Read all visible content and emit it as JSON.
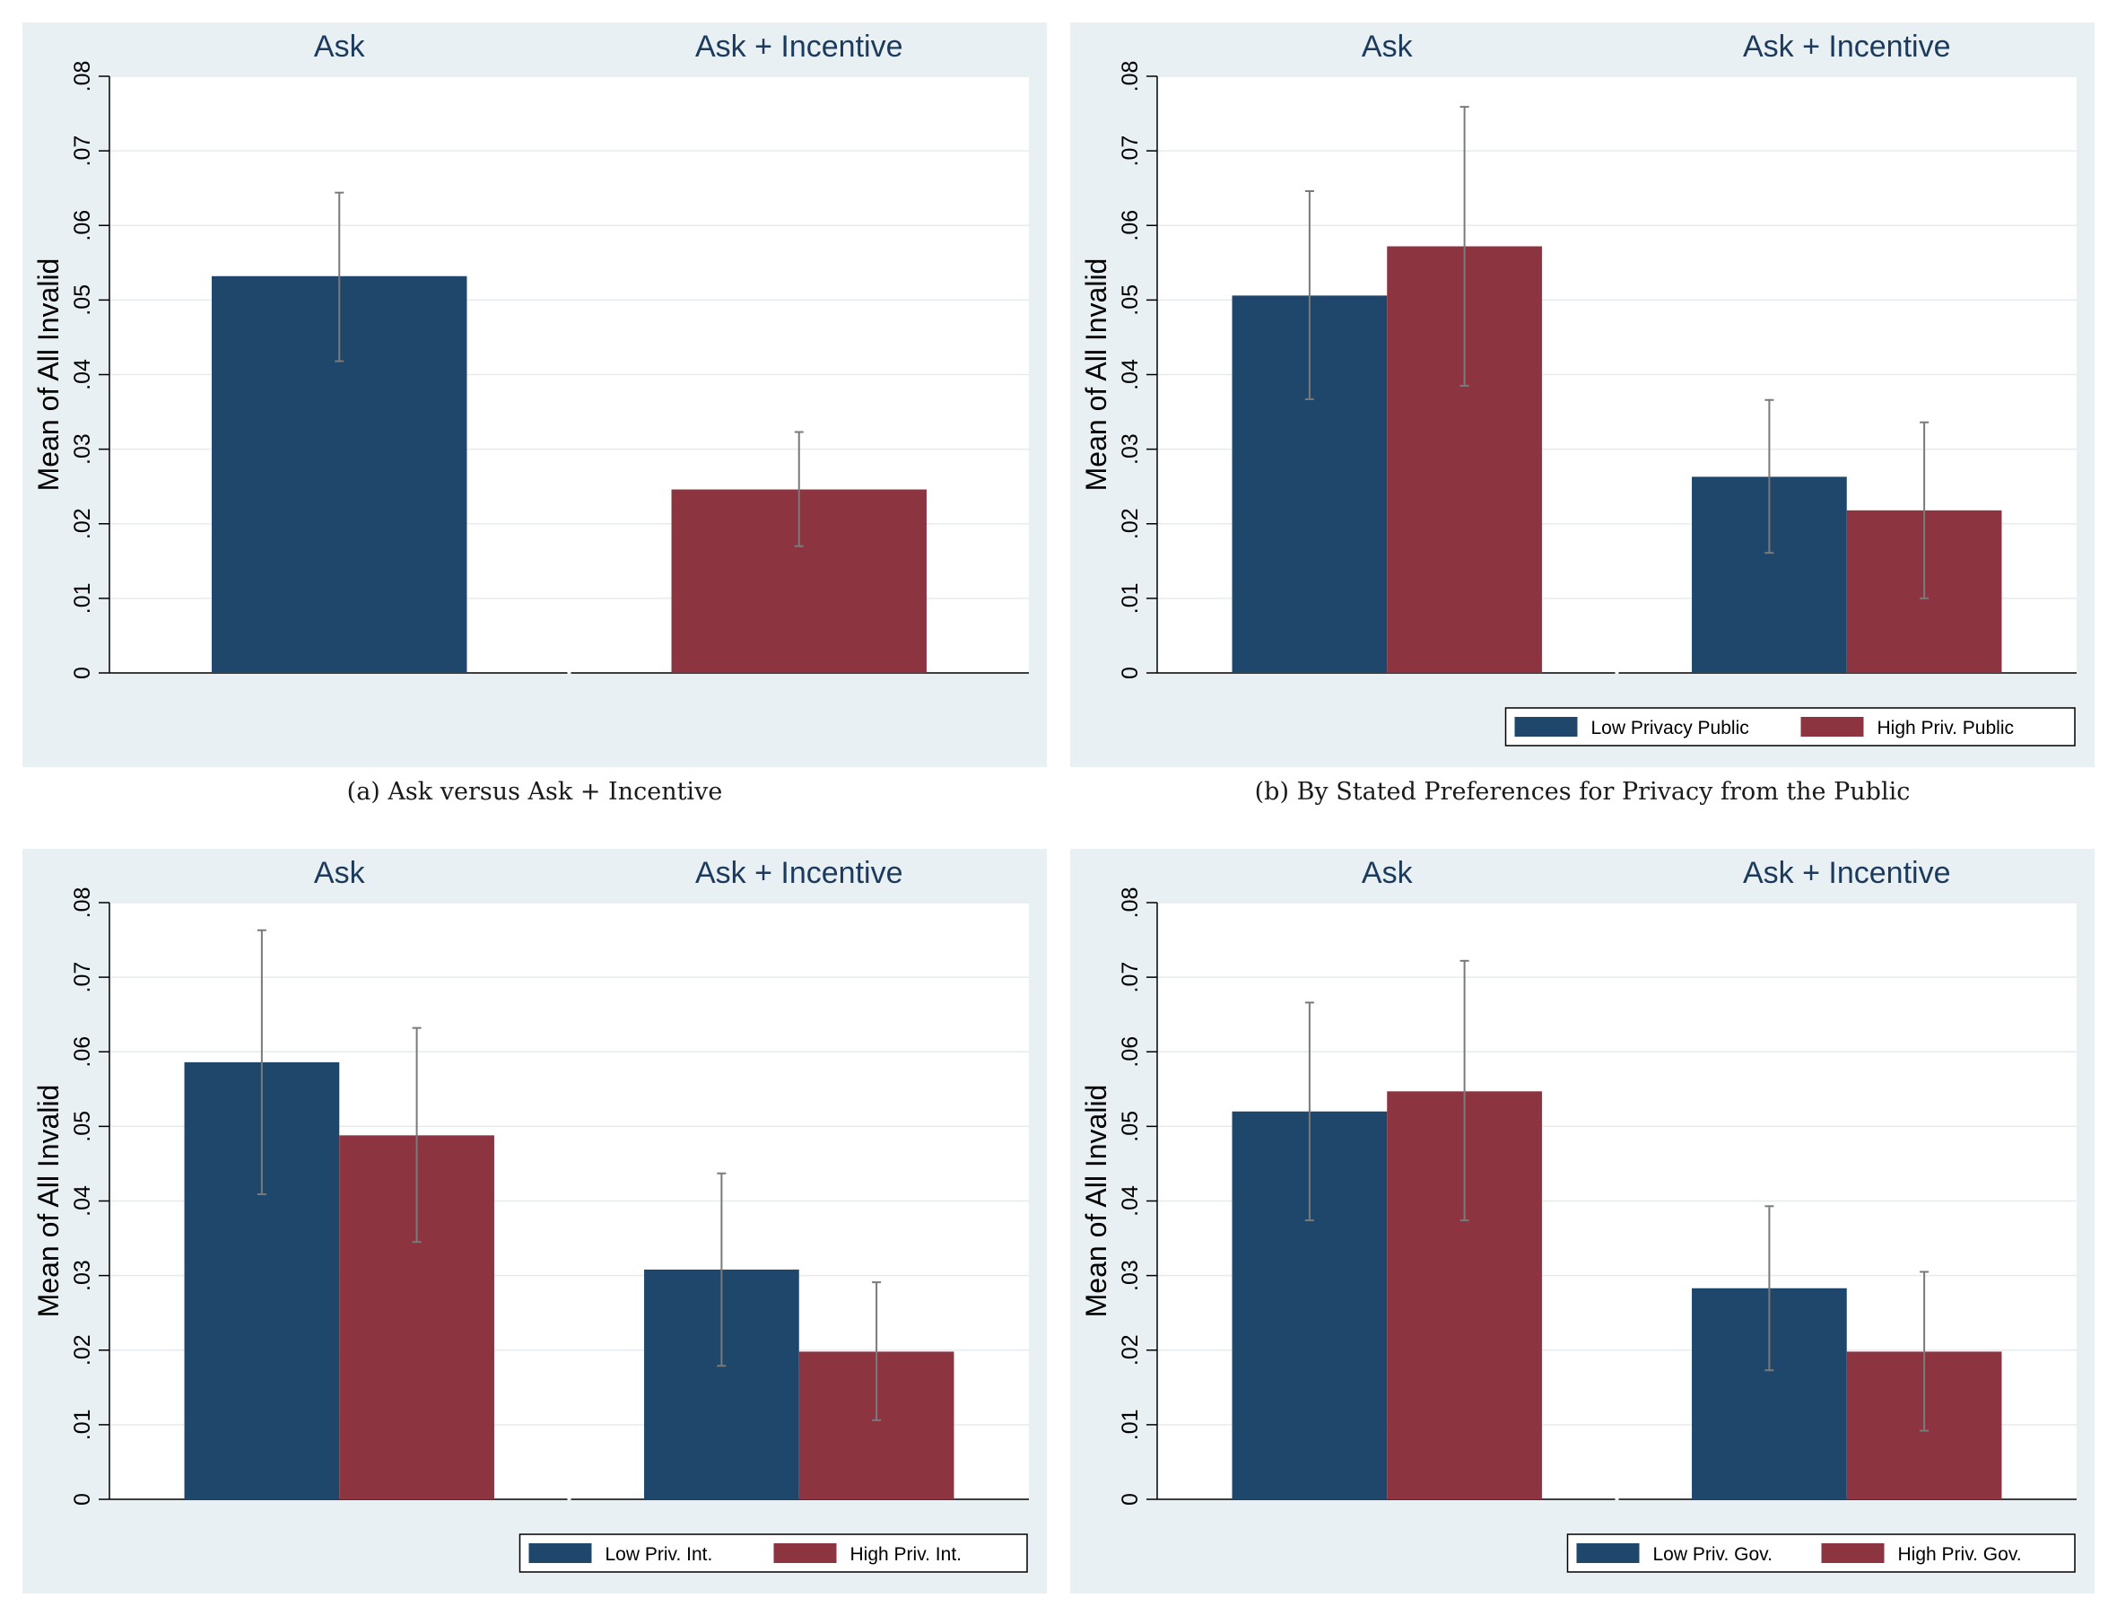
{
  "chart_data": [
    {
      "id": "a",
      "type": "bar",
      "facets": [
        "Ask",
        "Ask + Incentive"
      ],
      "ylabel": "Mean of All Invalid",
      "ylim": [
        0,
        0.08
      ],
      "yticks": [
        {
          "value": 0,
          "label": "0"
        },
        {
          "value": 0.01,
          "label": ".01"
        },
        {
          "value": 0.02,
          "label": ".02"
        },
        {
          "value": 0.03,
          "label": ".03"
        },
        {
          "value": 0.04,
          "label": ".04"
        },
        {
          "value": 0.05,
          "label": ".05"
        },
        {
          "value": 0.06,
          "label": ".06"
        },
        {
          "value": 0.07,
          "label": ".07"
        },
        {
          "value": 0.08,
          "label": ".08"
        }
      ],
      "series": [
        {
          "name": "",
          "color": "#1f476b",
          "values": [
            0.0532,
            null
          ],
          "ci": [
            [
              0.0418,
              0.0644
            ],
            null
          ]
        },
        {
          "name": "",
          "color": "#8c3540",
          "values": [
            null,
            0.0246
          ],
          "ci": [
            null,
            [
              0.017,
              0.0323
            ]
          ]
        }
      ],
      "legend": null,
      "caption": "(a) Ask versus Ask + Incentive"
    },
    {
      "id": "b",
      "type": "bar",
      "facets": [
        "Ask",
        "Ask + Incentive"
      ],
      "ylabel": "Mean of All Invalid",
      "ylim": [
        0,
        0.08
      ],
      "yticks": [
        {
          "value": 0,
          "label": "0"
        },
        {
          "value": 0.01,
          "label": ".01"
        },
        {
          "value": 0.02,
          "label": ".02"
        },
        {
          "value": 0.03,
          "label": ".03"
        },
        {
          "value": 0.04,
          "label": ".04"
        },
        {
          "value": 0.05,
          "label": ".05"
        },
        {
          "value": 0.06,
          "label": ".06"
        },
        {
          "value": 0.07,
          "label": ".07"
        },
        {
          "value": 0.08,
          "label": ".08"
        }
      ],
      "series": [
        {
          "name": "Low Privacy Public",
          "color": "#1f476b",
          "values": [
            0.0506,
            0.0263
          ],
          "ci": [
            [
              0.0367,
              0.0646
            ],
            [
              0.0161,
              0.0366
            ]
          ]
        },
        {
          "name": "High Priv. Public",
          "color": "#8c3540",
          "values": [
            0.0572,
            0.0218
          ],
          "ci": [
            [
              0.0385,
              0.0759
            ],
            [
              0.01,
              0.0336
            ]
          ]
        }
      ],
      "legend": "bottom-right",
      "caption": "(b) By Stated Preferences for Privacy from the Public"
    },
    {
      "id": "c",
      "type": "bar",
      "facets": [
        "Ask",
        "Ask + Incentive"
      ],
      "ylabel": "Mean of All Invalid",
      "ylim": [
        0,
        0.08
      ],
      "yticks": [
        {
          "value": 0,
          "label": "0"
        },
        {
          "value": 0.01,
          "label": ".01"
        },
        {
          "value": 0.02,
          "label": ".02"
        },
        {
          "value": 0.03,
          "label": ".03"
        },
        {
          "value": 0.04,
          "label": ".04"
        },
        {
          "value": 0.05,
          "label": ".05"
        },
        {
          "value": 0.06,
          "label": ".06"
        },
        {
          "value": 0.07,
          "label": ".07"
        },
        {
          "value": 0.08,
          "label": ".08"
        }
      ],
      "series": [
        {
          "name": "Low Priv. Int.",
          "color": "#1f476b",
          "values": [
            0.0586,
            0.0308
          ],
          "ci": [
            [
              0.0409,
              0.0763
            ],
            [
              0.0179,
              0.0437
            ]
          ]
        },
        {
          "name": "High Priv. Int.",
          "color": "#8c3540",
          "values": [
            0.0488,
            0.0198
          ],
          "ci": [
            [
              0.0345,
              0.0632
            ],
            [
              0.0106,
              0.0291
            ]
          ]
        }
      ],
      "legend": "bottom-right",
      "caption": ""
    },
    {
      "id": "d",
      "type": "bar",
      "facets": [
        "Ask",
        "Ask + Incentive"
      ],
      "ylabel": "Mean of All Invalid",
      "ylim": [
        0,
        0.08
      ],
      "yticks": [
        {
          "value": 0,
          "label": "0"
        },
        {
          "value": 0.01,
          "label": ".01"
        },
        {
          "value": 0.02,
          "label": ".02"
        },
        {
          "value": 0.03,
          "label": ".03"
        },
        {
          "value": 0.04,
          "label": ".04"
        },
        {
          "value": 0.05,
          "label": ".05"
        },
        {
          "value": 0.06,
          "label": ".06"
        },
        {
          "value": 0.07,
          "label": ".07"
        },
        {
          "value": 0.08,
          "label": ".08"
        }
      ],
      "series": [
        {
          "name": "Low Priv. Gov.",
          "color": "#1f476b",
          "values": [
            0.052,
            0.0283
          ],
          "ci": [
            [
              0.0374,
              0.0666
            ],
            [
              0.0173,
              0.0393
            ]
          ]
        },
        {
          "name": "High Priv. Gov.",
          "color": "#8c3540",
          "values": [
            0.0547,
            0.0198
          ],
          "ci": [
            [
              0.0374,
              0.0722
            ],
            [
              0.0092,
              0.0305
            ]
          ]
        }
      ],
      "legend": "bottom-right",
      "caption": ""
    }
  ]
}
